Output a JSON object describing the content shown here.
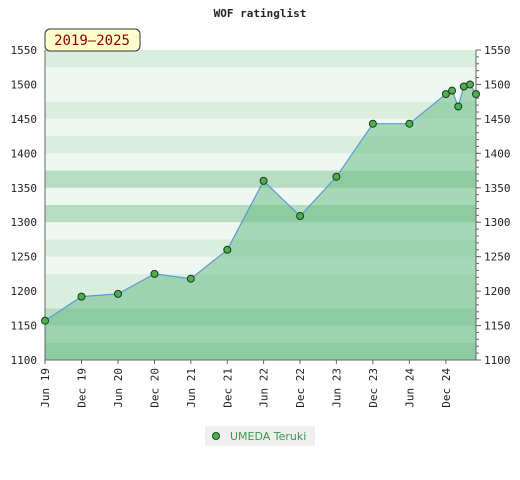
{
  "chart_data": {
    "type": "line",
    "title": "WOF ratinglist",
    "badge": "2019–2025",
    "xlabel": "",
    "ylabel": "",
    "ylim": [
      1100,
      1550
    ],
    "y_ticks": [
      1100,
      1150,
      1200,
      1250,
      1300,
      1350,
      1400,
      1450,
      1500,
      1550
    ],
    "x_range": [
      "2019-06-01",
      "2025-05-01"
    ],
    "x_ticks": [
      {
        "date": "2019-06-01",
        "label": "Jun 19"
      },
      {
        "date": "2019-12-01",
        "label": "Dec 19"
      },
      {
        "date": "2020-06-01",
        "label": "Jun 20"
      },
      {
        "date": "2020-12-01",
        "label": "Dec 20"
      },
      {
        "date": "2021-06-01",
        "label": "Jun 21"
      },
      {
        "date": "2021-12-01",
        "label": "Dec 21"
      },
      {
        "date": "2022-06-01",
        "label": "Jun 22"
      },
      {
        "date": "2022-12-01",
        "label": "Dec 22"
      },
      {
        "date": "2023-06-01",
        "label": "Jun 23"
      },
      {
        "date": "2023-12-01",
        "label": "Dec 23"
      },
      {
        "date": "2024-06-01",
        "label": "Jun 24"
      },
      {
        "date": "2024-12-01",
        "label": "Dec 24"
      }
    ],
    "grid": true,
    "legend_position": "bottom-center",
    "series": [
      {
        "name": "UMEDA Teruki",
        "color": "#3a9a4a",
        "line_color": "#5b9bd5",
        "marker_color": "#4caf50",
        "points": [
          {
            "x": "2019-06-01",
            "y": 1157
          },
          {
            "x": "2019-12-01",
            "y": 1192
          },
          {
            "x": "2020-06-01",
            "y": 1196
          },
          {
            "x": "2020-12-01",
            "y": 1225
          },
          {
            "x": "2021-06-01",
            "y": 1218
          },
          {
            "x": "2021-12-01",
            "y": 1260
          },
          {
            "x": "2022-06-01",
            "y": 1360
          },
          {
            "x": "2022-12-01",
            "y": 1309
          },
          {
            "x": "2023-06-01",
            "y": 1366
          },
          {
            "x": "2023-12-01",
            "y": 1443
          },
          {
            "x": "2024-06-01",
            "y": 1443
          },
          {
            "x": "2024-12-01",
            "y": 1486
          },
          {
            "x": "2025-01-01",
            "y": 1491
          },
          {
            "x": "2025-02-01",
            "y": 1468
          },
          {
            "x": "2025-03-01",
            "y": 1497
          },
          {
            "x": "2025-04-01",
            "y": 1500
          },
          {
            "x": "2025-05-01",
            "y": 1486
          }
        ]
      }
    ]
  },
  "colors": {
    "band_light": "#eef7f1",
    "band_mid": "#d9eedf",
    "band_dark": "#b6dcc1",
    "area_fill": "#6cbe87",
    "axis": "#666666",
    "badge_fill": "#ffffcc"
  }
}
